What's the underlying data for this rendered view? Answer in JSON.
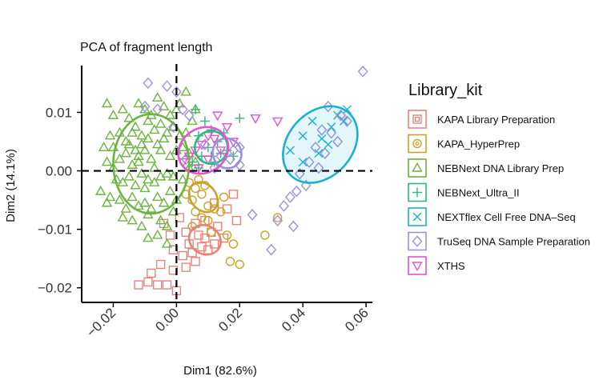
{
  "chart_data": {
    "type": "scatter",
    "title": "PCA of fragment length",
    "xlabel": "Dim1 (82.6%)",
    "ylabel": "Dim2 (14.1%)",
    "xlim": [
      -0.03,
      0.062
    ],
    "ylim": [
      -0.0225,
      0.018
    ],
    "x_ticks": [
      -0.02,
      0.0,
      0.02,
      0.04,
      0.06
    ],
    "x_tick_labels": [
      "−0.02",
      "0.00",
      "0.02",
      "0.04",
      "0.06"
    ],
    "y_ticks": [
      -0.02,
      -0.01,
      0.0,
      0.01
    ],
    "y_tick_labels": [
      "−0.02",
      "−0.01",
      "0.00",
      "0.01"
    ],
    "reference_lines": {
      "x": 0,
      "y": 0
    },
    "legend": {
      "title": "Library_kit",
      "position": "right",
      "entries": [
        {
          "label": "KAPA Library Preparation",
          "color": "#E8837A",
          "shape": "square-cross"
        },
        {
          "label": "KAPA_HyperPrep",
          "color": "#C9A227",
          "shape": "circle-ring"
        },
        {
          "label": "NEBNext DNA Library Prep",
          "color": "#6CB33F",
          "shape": "triangle-up"
        },
        {
          "label": "NEBNext_Ultra_II",
          "color": "#2DB87F",
          "shape": "plus"
        },
        {
          "label": "NEXTflex Cell Free DNA–Seq",
          "color": "#19B2CE",
          "shape": "cross"
        },
        {
          "label": "TruSeq DNA Sample Preparation",
          "color": "#9D8FE0",
          "shape": "diamond"
        },
        {
          "label": "XTHS",
          "color": "#E055D3",
          "shape": "triangle-down"
        }
      ]
    },
    "series": [
      {
        "name": "KAPA Library Preparation",
        "points": [
          [
            -0.006,
            -0.0195
          ],
          [
            -0.009,
            -0.019
          ],
          [
            -0.012,
            -0.0195
          ],
          [
            -0.003,
            -0.0195
          ],
          [
            0.0,
            -0.0205
          ],
          [
            -0.005,
            -0.016
          ],
          [
            -0.008,
            -0.0175
          ],
          [
            -0.001,
            -0.017
          ],
          [
            0.003,
            -0.0165
          ],
          [
            0.005,
            -0.014
          ],
          [
            0.008,
            -0.013
          ],
          [
            0.002,
            -0.0145
          ],
          [
            0.006,
            -0.0155
          ],
          [
            0.01,
            -0.0135
          ],
          [
            0.012,
            -0.0125
          ],
          [
            0.009,
            -0.0115
          ],
          [
            0.004,
            -0.0125
          ],
          [
            0.007,
            -0.011
          ],
          [
            0.011,
            -0.0105
          ],
          [
            0.003,
            -0.0105
          ],
          [
            0.013,
            -0.0095
          ],
          [
            0.006,
            -0.009
          ],
          [
            0.009,
            -0.0085
          ],
          [
            -0.004,
            -0.009
          ],
          [
            -0.001,
            -0.0135
          ],
          [
            0.015,
            -0.0115
          ],
          [
            0.019,
            -0.0085
          ],
          [
            0.016,
            -0.0065
          ],
          [
            0.018,
            -0.004
          ],
          [
            0.012,
            -0.0055
          ],
          [
            -0.002,
            -0.011
          ],
          [
            0.001,
            -0.008
          ]
        ]
      },
      {
        "name": "KAPA_HyperPrep",
        "points": [
          [
            0.004,
            -0.002
          ],
          [
            0.006,
            -0.003
          ],
          [
            0.008,
            -0.004
          ],
          [
            0.005,
            -0.005
          ],
          [
            0.01,
            -0.006
          ],
          [
            0.012,
            -0.0065
          ],
          [
            0.008,
            -0.008
          ],
          [
            0.014,
            -0.007
          ],
          [
            0.01,
            -0.0085
          ],
          [
            0.006,
            -0.007
          ],
          [
            0.003,
            -0.004
          ],
          [
            0.009,
            -0.0025
          ],
          [
            0.015,
            -0.0045
          ],
          [
            0.016,
            -0.011
          ],
          [
            0.02,
            -0.016
          ],
          [
            0.028,
            -0.011
          ],
          [
            0.032,
            -0.008
          ],
          [
            0.018,
            -0.0125
          ],
          [
            0.011,
            -0.0105
          ],
          [
            0.007,
            -0.0015
          ],
          [
            0.017,
            -0.0155
          ],
          [
            0.005,
            -0.0095
          ]
        ]
      },
      {
        "name": "NEBNext DNA Library Prep",
        "points": [
          [
            -0.022,
            0.0015
          ],
          [
            -0.02,
            0.0005
          ],
          [
            -0.018,
            0.002
          ],
          [
            -0.016,
            0.003
          ],
          [
            -0.014,
            0.001
          ],
          [
            -0.012,
            0.0025
          ],
          [
            -0.01,
            0.0035
          ],
          [
            -0.008,
            0.002
          ],
          [
            -0.006,
            0.0045
          ],
          [
            -0.004,
            0.0055
          ],
          [
            -0.002,
            0.0025
          ],
          [
            0.0,
            0.0035
          ],
          [
            0.002,
            0.004
          ],
          [
            0.004,
            0.003
          ],
          [
            -0.019,
            -0.0015
          ],
          [
            -0.017,
            -0.002
          ],
          [
            -0.015,
            -0.001
          ],
          [
            -0.013,
            -0.0025
          ],
          [
            -0.011,
            -0.0005
          ],
          [
            -0.009,
            -0.0015
          ],
          [
            -0.007,
            -0.002
          ],
          [
            -0.005,
            -0.001
          ],
          [
            -0.003,
            -0.0005
          ],
          [
            -0.001,
            -0.001
          ],
          [
            -0.021,
            0.006
          ],
          [
            -0.018,
            0.0065
          ],
          [
            -0.016,
            0.005
          ],
          [
            -0.013,
            0.0075
          ],
          [
            -0.011,
            0.006
          ],
          [
            -0.009,
            0.0085
          ],
          [
            -0.007,
            0.007
          ],
          [
            -0.005,
            0.008
          ],
          [
            -0.003,
            0.0065
          ],
          [
            -0.001,
            0.0075
          ],
          [
            0.001,
            0.006
          ],
          [
            -0.02,
            0.0095
          ],
          [
            -0.017,
            0.0105
          ],
          [
            -0.015,
            0.009
          ],
          [
            -0.012,
            0.0115
          ],
          [
            -0.01,
            0.0105
          ],
          [
            -0.008,
            0.0095
          ],
          [
            -0.006,
            0.0125
          ],
          [
            -0.004,
            0.011
          ],
          [
            -0.002,
            0.0095
          ],
          [
            0.0,
            0.0105
          ],
          [
            -0.023,
            0.004
          ],
          [
            -0.024,
            -0.0035
          ],
          [
            -0.021,
            -0.0045
          ],
          [
            -0.018,
            -0.005
          ],
          [
            -0.016,
            -0.0065
          ],
          [
            -0.014,
            -0.0045
          ],
          [
            -0.012,
            -0.006
          ],
          [
            -0.01,
            -0.0055
          ],
          [
            -0.008,
            -0.0065
          ],
          [
            -0.006,
            -0.0045
          ],
          [
            -0.004,
            -0.0055
          ],
          [
            -0.002,
            -0.0035
          ],
          [
            0.0,
            -0.005
          ],
          [
            -0.022,
            -0.0055
          ],
          [
            -0.017,
            -0.008
          ],
          [
            -0.014,
            -0.0085
          ],
          [
            -0.011,
            -0.0095
          ],
          [
            -0.009,
            -0.0075
          ],
          [
            -0.005,
            -0.0085
          ],
          [
            -0.003,
            -0.0095
          ],
          [
            -0.001,
            -0.007
          ],
          [
            -0.009,
            -0.0115
          ],
          [
            -0.006,
            -0.011
          ],
          [
            -0.003,
            -0.0125
          ],
          [
            0.002,
            -0.0015
          ],
          [
            0.004,
            0.0005
          ],
          [
            0.006,
            0.0015
          ],
          [
            0.003,
            0.0065
          ],
          [
            0.005,
            0.0085
          ],
          [
            -0.015,
            0.0045
          ],
          [
            -0.013,
            0.0035
          ],
          [
            -0.011,
            0.0045
          ],
          [
            -0.009,
            0.0055
          ],
          [
            -0.007,
            0.0005
          ],
          [
            -0.005,
            0.0035
          ],
          [
            0.003,
            0.0135
          ],
          [
            -0.012,
            0.0015
          ],
          [
            -0.02,
            0.004
          ],
          [
            -0.01,
            -0.003
          ],
          [
            -0.014,
            0.0065
          ],
          [
            -0.022,
            0.0115
          ],
          [
            0.001,
            0.0115
          ],
          [
            0.006,
            0.0105
          ]
        ]
      },
      {
        "name": "NEBNext_Ultra_II",
        "points": [
          [
            0.006,
            0.0105
          ],
          [
            0.009,
            0.0085
          ],
          [
            0.011,
            0.007
          ],
          [
            0.013,
            0.005
          ],
          [
            0.01,
            0.004
          ],
          [
            0.008,
            0.0025
          ],
          [
            0.014,
            0.003
          ],
          [
            0.016,
            0.0035
          ],
          [
            0.012,
            0.0015
          ],
          [
            0.007,
            0.0005
          ],
          [
            0.005,
            0.0015
          ],
          [
            0.018,
            0.0025
          ],
          [
            0.02,
            0.009
          ],
          [
            0.015,
            0.0065
          ],
          [
            0.007,
            0.006
          ],
          [
            0.011,
            0.0025
          ]
        ]
      },
      {
        "name": "NEXTflex Cell Free DNA–Seq",
        "points": [
          [
            0.036,
            0.0035
          ],
          [
            0.04,
            0.006
          ],
          [
            0.043,
            0.0085
          ],
          [
            0.046,
            0.0055
          ],
          [
            0.049,
            0.0075
          ],
          [
            0.051,
            0.0095
          ],
          [
            0.053,
            0.0085
          ],
          [
            0.045,
            0.003
          ],
          [
            0.04,
            0.0015
          ],
          [
            0.054,
            0.0105
          ],
          [
            0.048,
            0.0045
          ]
        ]
      },
      {
        "name": "TruSeq DNA Sample Preparation",
        "points": [
          [
            0.059,
            0.017
          ],
          [
            0.048,
            0.011
          ],
          [
            0.052,
            0.0095
          ],
          [
            0.054,
            0.0085
          ],
          [
            0.046,
            0.007
          ],
          [
            0.049,
            0.0065
          ],
          [
            0.051,
            0.005
          ],
          [
            0.044,
            0.004
          ],
          [
            0.047,
            0.003
          ],
          [
            0.042,
            0.0015
          ],
          [
            0.045,
            0.0005
          ],
          [
            0.039,
            -0.0005
          ],
          [
            0.041,
            -0.0025
          ],
          [
            0.038,
            -0.0035
          ],
          [
            0.036,
            -0.0045
          ],
          [
            0.034,
            -0.006
          ],
          [
            0.032,
            -0.0085
          ],
          [
            0.037,
            -0.0095
          ],
          [
            0.03,
            -0.0135
          ],
          [
            0.024,
            -0.0075
          ],
          [
            0.018,
            0.0035
          ],
          [
            0.02,
            0.001
          ],
          [
            0.017,
            0.002
          ],
          [
            0.014,
            0.0025
          ],
          [
            0.012,
            0.0005
          ],
          [
            -0.009,
            0.015
          ],
          [
            -0.003,
            0.0145
          ],
          [
            0.0,
            0.0135
          ],
          [
            -0.006,
            0.0105
          ],
          [
            -0.001,
            0.0075
          ],
          [
            0.004,
            0.0095
          ],
          [
            0.003,
            0.002
          ],
          [
            0.009,
            0.0045
          ],
          [
            0.02,
            0.004
          ],
          [
            -0.01,
            0.011
          ],
          [
            0.002,
            0.0105
          ]
        ]
      },
      {
        "name": "XTHS",
        "points": [
          [
            0.025,
            0.009
          ],
          [
            0.032,
            0.0085
          ],
          [
            0.016,
            0.0075
          ],
          [
            0.012,
            0.0055
          ],
          [
            0.01,
            0.006
          ],
          [
            0.008,
            0.0045
          ],
          [
            0.006,
            0.0035
          ],
          [
            0.004,
            0.0025
          ],
          [
            0.002,
            0.0015
          ],
          [
            0.014,
            0.0035
          ],
          [
            0.018,
            0.005
          ],
          [
            0.007,
            0.0005
          ],
          [
            0.013,
            0.0095
          ],
          [
            0.01,
            0.002
          ]
        ]
      }
    ],
    "ellipses": [
      {
        "series": "KAPA Library Preparation",
        "cx": 0.009,
        "cy": -0.0118,
        "rx": 0.0045,
        "ry": 0.0028,
        "angle": 60
      },
      {
        "series": "KAPA_HyperPrep",
        "cx": 0.0085,
        "cy": -0.0045,
        "rx": 0.004,
        "ry": 0.0028,
        "angle": 40
      },
      {
        "series": "NEBNext DNA Library Prep",
        "cx": -0.008,
        "cy": 0.0012,
        "rx": 0.012,
        "ry": 0.0085,
        "angle": 0
      },
      {
        "series": "NEBNext_Ultra_II",
        "cx": 0.011,
        "cy": 0.004,
        "rx": 0.0052,
        "ry": 0.0028,
        "angle": 40
      },
      {
        "series": "NEXTflex Cell Free DNA–Seq",
        "cx": 0.0455,
        "cy": 0.0045,
        "rx": 0.0135,
        "ry": 0.0055,
        "angle": 48
      },
      {
        "series": "TruSeq DNA Sample Preparation",
        "cx": 0.016,
        "cy": 0.003,
        "rx": 0.0045,
        "ry": 0.0026,
        "angle": 25
      },
      {
        "series": "XTHS",
        "cx": 0.0085,
        "cy": 0.0035,
        "rx": 0.0082,
        "ry": 0.0038,
        "angle": 32
      }
    ]
  }
}
